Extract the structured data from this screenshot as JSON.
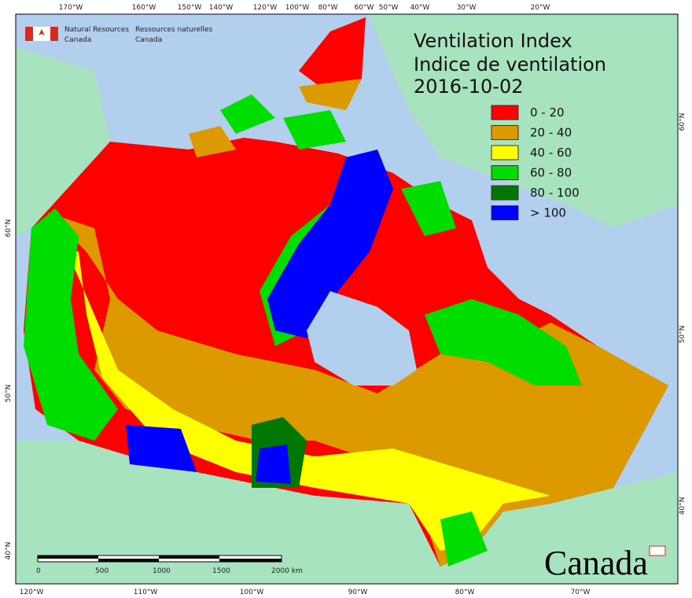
{
  "header": {
    "agency_en": [
      "Natural Resources",
      "Canada"
    ],
    "agency_fr": [
      "Ressources naturelles",
      "Canada"
    ]
  },
  "title": [
    "Ventilation Index",
    "Indice de ventilation"
  ],
  "date": "2016-10-02",
  "legend": [
    {
      "label": "0 - 20",
      "color": "#ff0000"
    },
    {
      "label": "20 - 40",
      "color": "#dd9900"
    },
    {
      "label": "40 - 60",
      "color": "#ffff00"
    },
    {
      "label": "60 - 80",
      "color": "#00dd00"
    },
    {
      "label": "80 - 100",
      "color": "#007700"
    },
    {
      "label": "> 100",
      "color": "#0000ff"
    }
  ],
  "top_longitudes": [
    "170°W",
    "160°W",
    "150°W",
    "140°W",
    "120°W",
    "100°W",
    "80°W",
    "60°W",
    "50°W",
    "40°W",
    "30°W",
    "20°W"
  ],
  "bottom_longitudes": [
    "120°W",
    "110°W",
    "100°W",
    "90°W",
    "80°W",
    "70°W"
  ],
  "left_latitudes": [
    "60°N",
    "50°N",
    "40°N"
  ],
  "right_latitudes": [
    "60°N",
    "50°N",
    "40°N"
  ],
  "scale_bar": [
    "0",
    "500",
    "1000",
    "1500",
    "2000 km"
  ],
  "wordmark": "Canada"
}
